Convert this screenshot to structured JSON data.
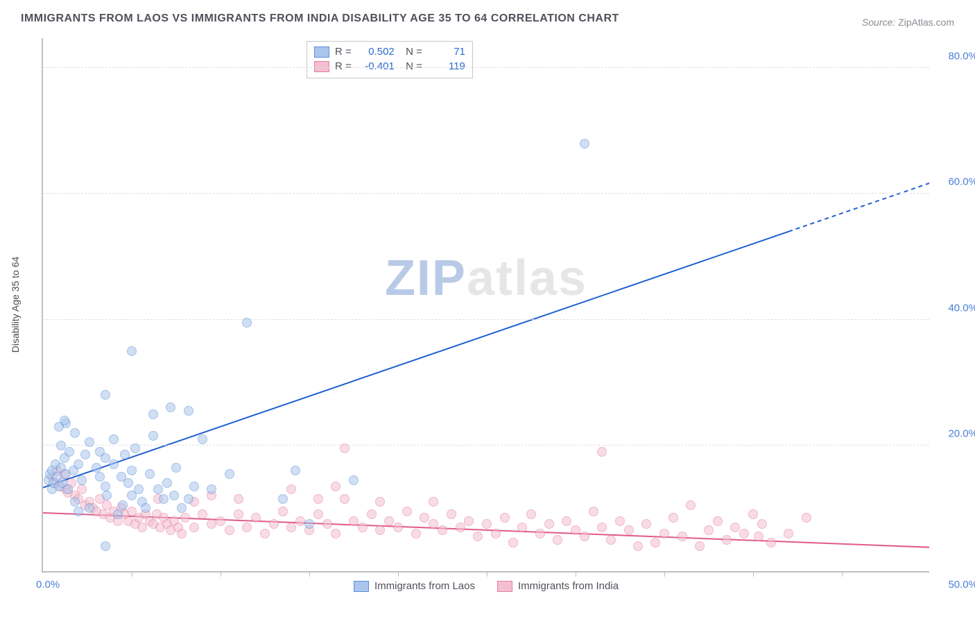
{
  "title": "IMMIGRANTS FROM LAOS VS IMMIGRANTS FROM INDIA DISABILITY AGE 35 TO 64 CORRELATION CHART",
  "source_label": "Source:",
  "source_value": "ZipAtlas.com",
  "ylabel": "Disability Age 35 to 64",
  "watermark_a": "ZIP",
  "watermark_b": "atlas",
  "chart": {
    "type": "scatter",
    "xlim": [
      0,
      50
    ],
    "ylim": [
      0,
      85
    ],
    "x_min_label": "0.0%",
    "x_max_label": "50.0%",
    "x_tick_positions": [
      5,
      10,
      15,
      20,
      25,
      30,
      35,
      40,
      45
    ],
    "y_ticks": [
      20,
      40,
      60,
      80
    ],
    "y_tick_labels": [
      "20.0%",
      "40.0%",
      "60.0%",
      "80.0%"
    ],
    "grid_color": "#e0e0e0",
    "axis_color": "#bfbfbf",
    "tick_label_color": "#4a7fd6",
    "background_color": "#ffffff",
    "marker_radius": 7,
    "marker_opacity": 0.55,
    "series": [
      {
        "name": "Immigrants from Laos",
        "fill": "#aac6ec",
        "stroke": "#5a8fd6",
        "trend_color": "#1f5fd0",
        "trend_width": 2,
        "R": "0.502",
        "N": "71",
        "trend": {
          "x1": 0,
          "y1": 13.5,
          "x2": 50,
          "y2": 62.0,
          "dash_from_x": 42
        },
        "points": [
          [
            0.3,
            14.5
          ],
          [
            0.4,
            15.5
          ],
          [
            0.5,
            13.0
          ],
          [
            0.5,
            16.0
          ],
          [
            0.6,
            14.0
          ],
          [
            0.7,
            17.0
          ],
          [
            0.8,
            15.0
          ],
          [
            0.9,
            13.5
          ],
          [
            1.0,
            16.5
          ],
          [
            1.1,
            14.0
          ],
          [
            1.2,
            18.0
          ],
          [
            1.3,
            15.5
          ],
          [
            1.4,
            13.0
          ],
          [
            1.5,
            19.0
          ],
          [
            1.7,
            16.0
          ],
          [
            1.8,
            22.0
          ],
          [
            1.3,
            23.5
          ],
          [
            0.9,
            23.0
          ],
          [
            2.0,
            17.0
          ],
          [
            2.2,
            14.5
          ],
          [
            2.4,
            18.5
          ],
          [
            2.6,
            20.5
          ],
          [
            1.0,
            20.0
          ],
          [
            1.2,
            24.0
          ],
          [
            3.0,
            16.5
          ],
          [
            3.2,
            15.0
          ],
          [
            3.2,
            19.0
          ],
          [
            3.5,
            18.0
          ],
          [
            3.5,
            13.5
          ],
          [
            3.6,
            12.0
          ],
          [
            4.0,
            17.0
          ],
          [
            4.0,
            21.0
          ],
          [
            4.4,
            15.0
          ],
          [
            4.6,
            18.5
          ],
          [
            4.8,
            14.0
          ],
          [
            4.5,
            10.5
          ],
          [
            5.0,
            16.0
          ],
          [
            5.2,
            19.5
          ],
          [
            5.4,
            13.0
          ],
          [
            5.6,
            11.0
          ],
          [
            5.8,
            10.0
          ],
          [
            5.0,
            12.0
          ],
          [
            6.0,
            15.5
          ],
          [
            6.2,
            21.5
          ],
          [
            6.5,
            13.0
          ],
          [
            6.8,
            11.5
          ],
          [
            6.2,
            25.0
          ],
          [
            7.0,
            14.0
          ],
          [
            7.2,
            26.0
          ],
          [
            7.4,
            12.0
          ],
          [
            7.5,
            16.5
          ],
          [
            7.8,
            10.0
          ],
          [
            8.2,
            11.5
          ],
          [
            8.2,
            25.5
          ],
          [
            8.5,
            13.5
          ],
          [
            3.5,
            28.0
          ],
          [
            5.0,
            35.0
          ],
          [
            3.5,
            4.0
          ],
          [
            9.0,
            21.0
          ],
          [
            9.5,
            13.0
          ],
          [
            2.6,
            10.0
          ],
          [
            2.0,
            9.5
          ],
          [
            1.8,
            11.0
          ],
          [
            10.5,
            15.5
          ],
          [
            11.5,
            39.5
          ],
          [
            13.5,
            11.5
          ],
          [
            14.2,
            16.0
          ],
          [
            15.0,
            7.5
          ],
          [
            17.5,
            14.5
          ],
          [
            30.5,
            68.0
          ],
          [
            4.2,
            9.0
          ]
        ]
      },
      {
        "name": "Immigrants from India",
        "fill": "#f4bfd0",
        "stroke": "#e47da0",
        "trend_color": "#e05a8c",
        "trend_width": 2,
        "R": "-0.401",
        "N": "119",
        "trend": {
          "x1": 0,
          "y1": 9.5,
          "x2": 50,
          "y2": 4.0,
          "dash_from_x": 50
        },
        "points": [
          [
            0.5,
            15.0
          ],
          [
            0.7,
            14.0
          ],
          [
            0.8,
            16.0
          ],
          [
            1.0,
            13.5
          ],
          [
            1.2,
            15.5
          ],
          [
            1.3,
            13.0
          ],
          [
            1.4,
            12.5
          ],
          [
            1.6,
            14.0
          ],
          [
            1.8,
            12.0
          ],
          [
            2.0,
            11.5
          ],
          [
            2.2,
            13.0
          ],
          [
            2.4,
            10.5
          ],
          [
            2.6,
            11.0
          ],
          [
            2.8,
            10.0
          ],
          [
            3.0,
            9.5
          ],
          [
            3.2,
            11.5
          ],
          [
            3.4,
            9.0
          ],
          [
            3.6,
            10.5
          ],
          [
            3.8,
            8.5
          ],
          [
            4.0,
            9.5
          ],
          [
            4.2,
            8.0
          ],
          [
            4.4,
            10.0
          ],
          [
            4.6,
            9.0
          ],
          [
            4.8,
            8.0
          ],
          [
            5.0,
            9.5
          ],
          [
            5.2,
            7.5
          ],
          [
            5.4,
            8.5
          ],
          [
            5.6,
            7.0
          ],
          [
            5.8,
            9.0
          ],
          [
            6.0,
            8.0
          ],
          [
            6.2,
            7.5
          ],
          [
            6.4,
            9.0
          ],
          [
            6.6,
            7.0
          ],
          [
            6.8,
            8.5
          ],
          [
            7.0,
            7.5
          ],
          [
            7.2,
            6.5
          ],
          [
            7.4,
            8.0
          ],
          [
            7.6,
            7.0
          ],
          [
            7.8,
            6.0
          ],
          [
            8.0,
            8.5
          ],
          [
            8.5,
            7.0
          ],
          [
            9.0,
            9.0
          ],
          [
            9.5,
            7.5
          ],
          [
            10.0,
            8.0
          ],
          [
            10.5,
            6.5
          ],
          [
            11.0,
            9.0
          ],
          [
            11.5,
            7.0
          ],
          [
            12.0,
            8.5
          ],
          [
            12.5,
            6.0
          ],
          [
            13.0,
            7.5
          ],
          [
            13.5,
            9.5
          ],
          [
            14.0,
            7.0
          ],
          [
            14.5,
            8.0
          ],
          [
            15.0,
            6.5
          ],
          [
            15.5,
            9.0
          ],
          [
            16.0,
            7.5
          ],
          [
            16.5,
            6.0
          ],
          [
            17.0,
            11.5
          ],
          [
            17.5,
            8.0
          ],
          [
            17.0,
            19.5
          ],
          [
            18.0,
            7.0
          ],
          [
            18.5,
            9.0
          ],
          [
            19.0,
            6.5
          ],
          [
            19.5,
            8.0
          ],
          [
            20.0,
            7.0
          ],
          [
            20.5,
            9.5
          ],
          [
            21.0,
            6.0
          ],
          [
            21.5,
            8.5
          ],
          [
            22.0,
            7.5
          ],
          [
            22.5,
            6.5
          ],
          [
            23.0,
            9.0
          ],
          [
            23.5,
            7.0
          ],
          [
            24.0,
            8.0
          ],
          [
            24.5,
            5.5
          ],
          [
            25.0,
            7.5
          ],
          [
            25.5,
            6.0
          ],
          [
            26.0,
            8.5
          ],
          [
            26.5,
            4.5
          ],
          [
            27.0,
            7.0
          ],
          [
            27.5,
            9.0
          ],
          [
            28.0,
            6.0
          ],
          [
            28.5,
            7.5
          ],
          [
            29.0,
            5.0
          ],
          [
            29.5,
            8.0
          ],
          [
            30.0,
            6.5
          ],
          [
            30.5,
            5.5
          ],
          [
            31.0,
            9.5
          ],
          [
            31.5,
            19.0
          ],
          [
            31.5,
            7.0
          ],
          [
            32.0,
            5.0
          ],
          [
            32.5,
            8.0
          ],
          [
            33.0,
            6.5
          ],
          [
            33.5,
            4.0
          ],
          [
            34.0,
            7.5
          ],
          [
            34.5,
            4.5
          ],
          [
            35.0,
            6.0
          ],
          [
            35.5,
            8.5
          ],
          [
            36.0,
            5.5
          ],
          [
            36.5,
            10.5
          ],
          [
            37.0,
            4.0
          ],
          [
            37.5,
            6.5
          ],
          [
            38.0,
            8.0
          ],
          [
            38.5,
            5.0
          ],
          [
            39.0,
            7.0
          ],
          [
            39.5,
            6.0
          ],
          [
            40.0,
            9.0
          ],
          [
            40.3,
            5.5
          ],
          [
            40.5,
            7.5
          ],
          [
            41.0,
            4.5
          ],
          [
            42.0,
            6.0
          ],
          [
            43.0,
            8.5
          ],
          [
            14.0,
            13.0
          ],
          [
            15.5,
            11.5
          ],
          [
            19.0,
            11.0
          ],
          [
            16.5,
            13.5
          ],
          [
            22.0,
            11.0
          ],
          [
            8.5,
            11.0
          ],
          [
            9.5,
            12.0
          ],
          [
            11.0,
            11.5
          ],
          [
            6.5,
            11.5
          ]
        ]
      }
    ]
  }
}
